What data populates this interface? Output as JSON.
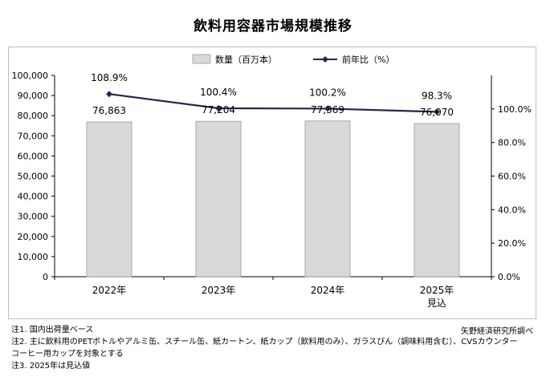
{
  "title": "飲料用容器市場規模推移",
  "chart_data": {
    "type": "bar",
    "categories": [
      "2022年",
      "2023年",
      "2024年",
      "2025年"
    ],
    "category_sublabels": [
      "",
      "",
      "",
      "見込"
    ],
    "series": [
      {
        "name": "数量（百万本）",
        "type": "bar",
        "axis": "left",
        "values": [
          76863,
          77204,
          77369,
          76070
        ],
        "labels": [
          "76,863",
          "77,204",
          "77,369",
          "76,070"
        ],
        "color": "#d9d9d9"
      },
      {
        "name": "前年比（%）",
        "type": "line",
        "axis": "right",
        "values": [
          108.9,
          100.4,
          100.2,
          98.3
        ],
        "labels": [
          "108.9%",
          "100.4%",
          "100.2%",
          "98.3%"
        ],
        "color": "#1f2a4a"
      }
    ],
    "y_left": {
      "ylim": [
        0,
        100000
      ],
      "ticks": [
        "0",
        "10,000",
        "20,000",
        "30,000",
        "40,000",
        "50,000",
        "60,000",
        "70,000",
        "80,000",
        "90,000",
        "100,000"
      ]
    },
    "y_right": {
      "ylim": [
        0,
        120
      ],
      "ticks": [
        "0.0%",
        "20.0%",
        "40.0%",
        "60.0%",
        "80.0%",
        "100.0%"
      ]
    },
    "legend_position": "top",
    "grid": false
  },
  "notes": [
    "注1.  国内出荷量ベース",
    "注2.  主に飲料用のPETボトルやアルミ缶、スチール缶、紙カートン、紙カップ（飲料用のみ）、ガラスびん（調味料用含む）、CVSカウンター",
    "コーヒー用カップを対象とする",
    "注3.  2025年は見込値"
  ],
  "source": "矢野経済研究所調べ"
}
